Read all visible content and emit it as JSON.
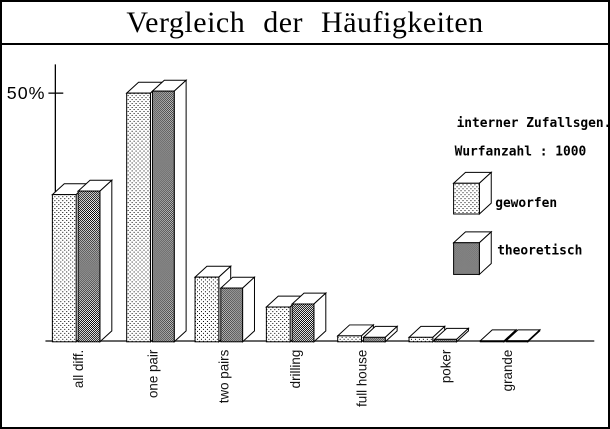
{
  "title": "Vergleich der Häufigkeiten",
  "y_axis": {
    "tick_label": "50%",
    "tick_value": 50
  },
  "info": {
    "line1": "interner Zufallsgen.",
    "line2": "Wurfanzahl : 1000"
  },
  "chart_data": {
    "type": "bar",
    "style": "3d-bars-grouped",
    "categories": [
      "all diff.",
      "one pair",
      "two pairs",
      "drilling",
      "full house",
      "poker",
      "grande"
    ],
    "series": [
      {
        "name": "geworfen",
        "pattern": "dots",
        "values": [
          29.6,
          50.0,
          13.0,
          7.0,
          1.2,
          0.9,
          0.1
        ]
      },
      {
        "name": "theoretisch",
        "pattern": "hatch",
        "values": [
          30.3,
          50.4,
          10.8,
          7.6,
          0.9,
          0.5,
          0.2
        ]
      }
    ],
    "title": "Vergleich der Häufigkeiten",
    "xlabel": "",
    "ylabel": "%",
    "ylim": [
      0,
      55
    ],
    "y_ticks": [
      {
        "value": 50,
        "label": "50%"
      }
    ],
    "grid": false,
    "legend_position": "right",
    "annotations": [
      "interner Zufallsgen.",
      "Wurfanzahl : 1000"
    ]
  },
  "colors": {
    "foreground": "#000000",
    "background": "#ffffff",
    "baseline": "#555555"
  }
}
